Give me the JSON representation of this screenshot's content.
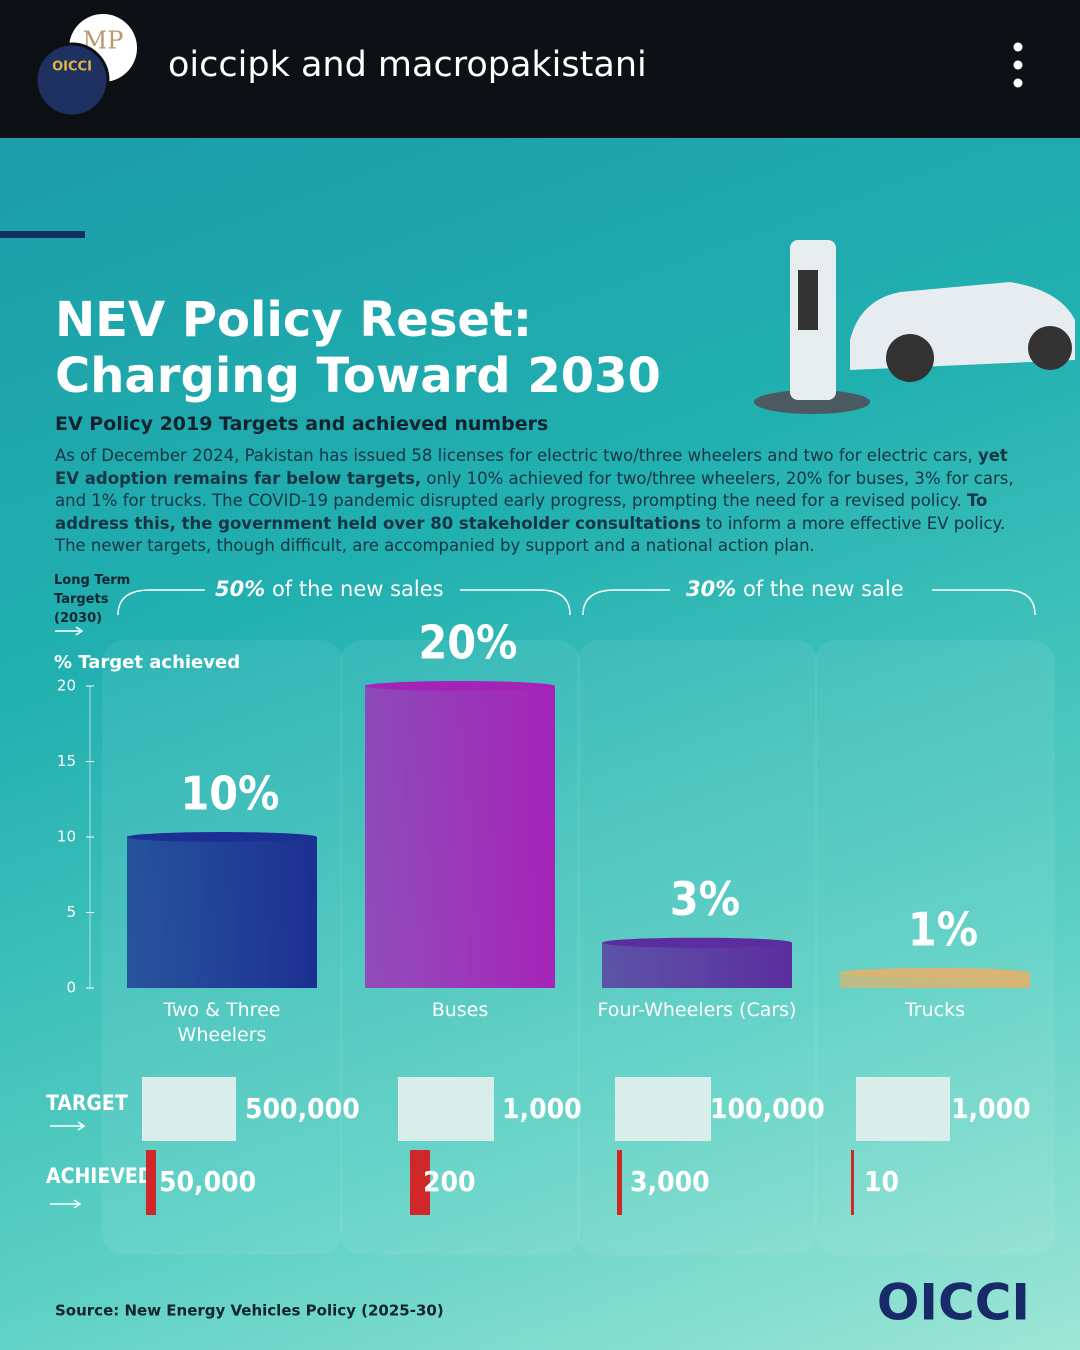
{
  "header": {
    "username": "oiccipk and macropakistani",
    "avatar_labels": [
      "MP",
      "OICCI"
    ]
  },
  "chart_data": {
    "type": "bar",
    "title": [
      "NEV Policy Reset:",
      "Charging Toward 2030"
    ],
    "subtitle": "EV Policy 2019 Targets and achieved numbers",
    "description": [
      "As of December 2024, Pakistan has issued 58 licenses for electric two/three wheelers and two for electric cars, ",
      "yet EV adoption remains far below targets,",
      " only 10% achieved for two/three wheelers, 20% for buses, 3% for cars, and 1% for trucks. The COVID-19 pandemic disrupted early progress, prompting the need for a revised policy. ",
      "To address this, the government held over 80 stakeholder consultations",
      " to inform a more effective EV policy. The newer targets, though difficult, are accompanied by support and a national action plan."
    ],
    "long_term_label": "Long Term Targets (2030)",
    "long_term_groups": [
      {
        "emphasis": "50%",
        "text": "of the new sales"
      },
      {
        "emphasis": "30%",
        "text": "of the new sale"
      }
    ],
    "y_axis_label": "% Target achieved",
    "categories": [
      "Two & Three Wheelers",
      "Buses",
      "Four-Wheelers (Cars)",
      "Trucks"
    ],
    "values": [
      10,
      20,
      3,
      1
    ],
    "value_labels": [
      "10%",
      "20%",
      "3%",
      "1%"
    ],
    "colors": [
      "#1c2f92",
      "#a524b8",
      "#5b2d9e",
      "#d8b574"
    ],
    "ylim": [
      0,
      20
    ],
    "yticks": [
      0,
      5,
      10,
      15,
      20
    ],
    "grid": false
  },
  "table": {
    "rows": [
      [
        "TARGET",
        "500,000",
        "1,000",
        "100,000",
        "1,000"
      ],
      [
        "ACHIEVED",
        "50,000",
        "200",
        "3,000",
        "10"
      ]
    ]
  },
  "footer": {
    "source": "Source: New Energy Vehicles Policy (2025-30)",
    "logo": "OICCI"
  }
}
